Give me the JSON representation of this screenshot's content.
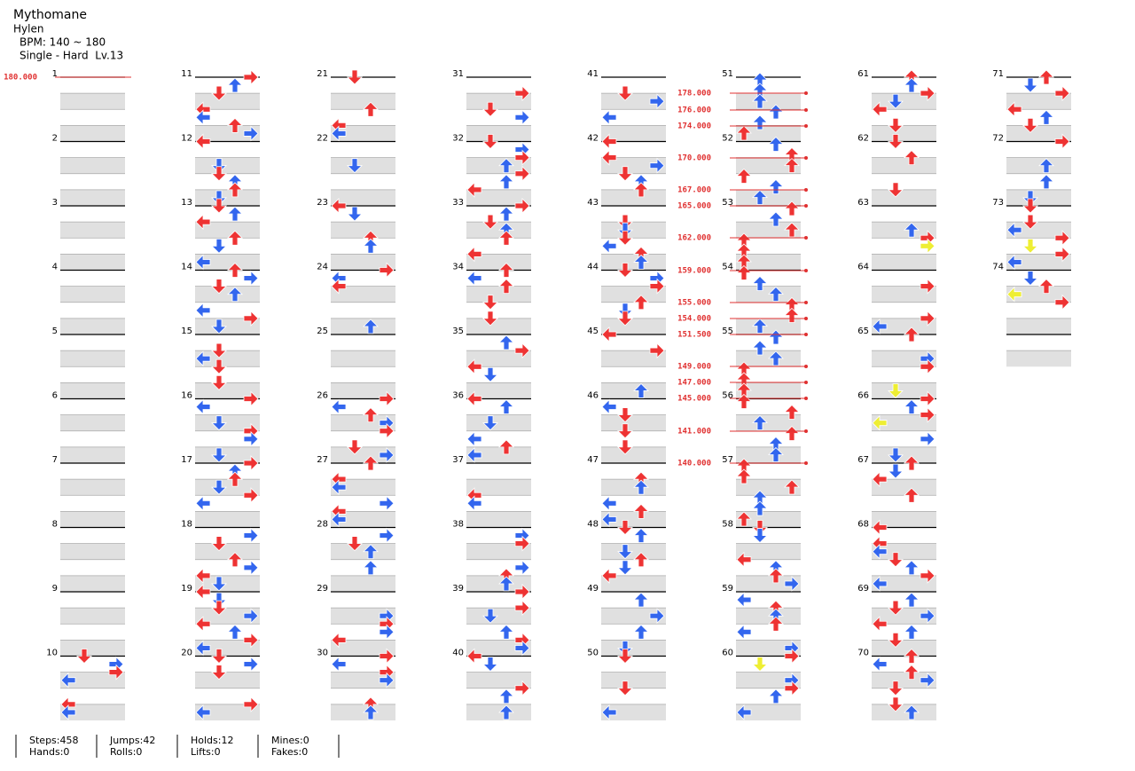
{
  "header": {
    "title": "Mythomane",
    "artist": "Hylen",
    "bpm": "BPM: 140 ~ 180",
    "difficulty": "Single - Hard  Lv.13"
  },
  "measures": [
    "1",
    "2",
    "3",
    "4",
    "5",
    "6",
    "7",
    "8",
    "9",
    "10",
    "11",
    "12",
    "13",
    "14",
    "15",
    "16",
    "17",
    "18",
    "19",
    "20",
    "21",
    "22",
    "23",
    "24",
    "25",
    "26",
    "27",
    "28",
    "29",
    "30",
    "31",
    "32",
    "33",
    "34",
    "35",
    "36",
    "37",
    "38",
    "39",
    "40",
    "41",
    "42",
    "43",
    "44",
    "45",
    "46",
    "47",
    "48",
    "49",
    "50",
    "51",
    "52",
    "53",
    "54",
    "55",
    "56",
    "57",
    "58",
    "59",
    "60",
    "61",
    "62",
    "63",
    "64",
    "65",
    "66",
    "67",
    "68",
    "69",
    "70",
    "71",
    "72",
    "73",
    "74"
  ],
  "bpm_changes": [
    "180.000",
    "178.000",
    "176.000",
    "174.000",
    "170.000",
    "167.000",
    "165.000",
    "162.000",
    "159.000",
    "155.000",
    "154.000",
    "151.500",
    "149.000",
    "147.000",
    "145.000",
    "141.000",
    "140.000"
  ],
  "stats": [
    [
      "Steps:458",
      "Hands:0"
    ],
    [
      "Jumps:42",
      "Rolls:0"
    ],
    [
      "Holds:12",
      "Lifts:0"
    ],
    [
      "Mines:0",
      "Fakes:0"
    ]
  ]
}
